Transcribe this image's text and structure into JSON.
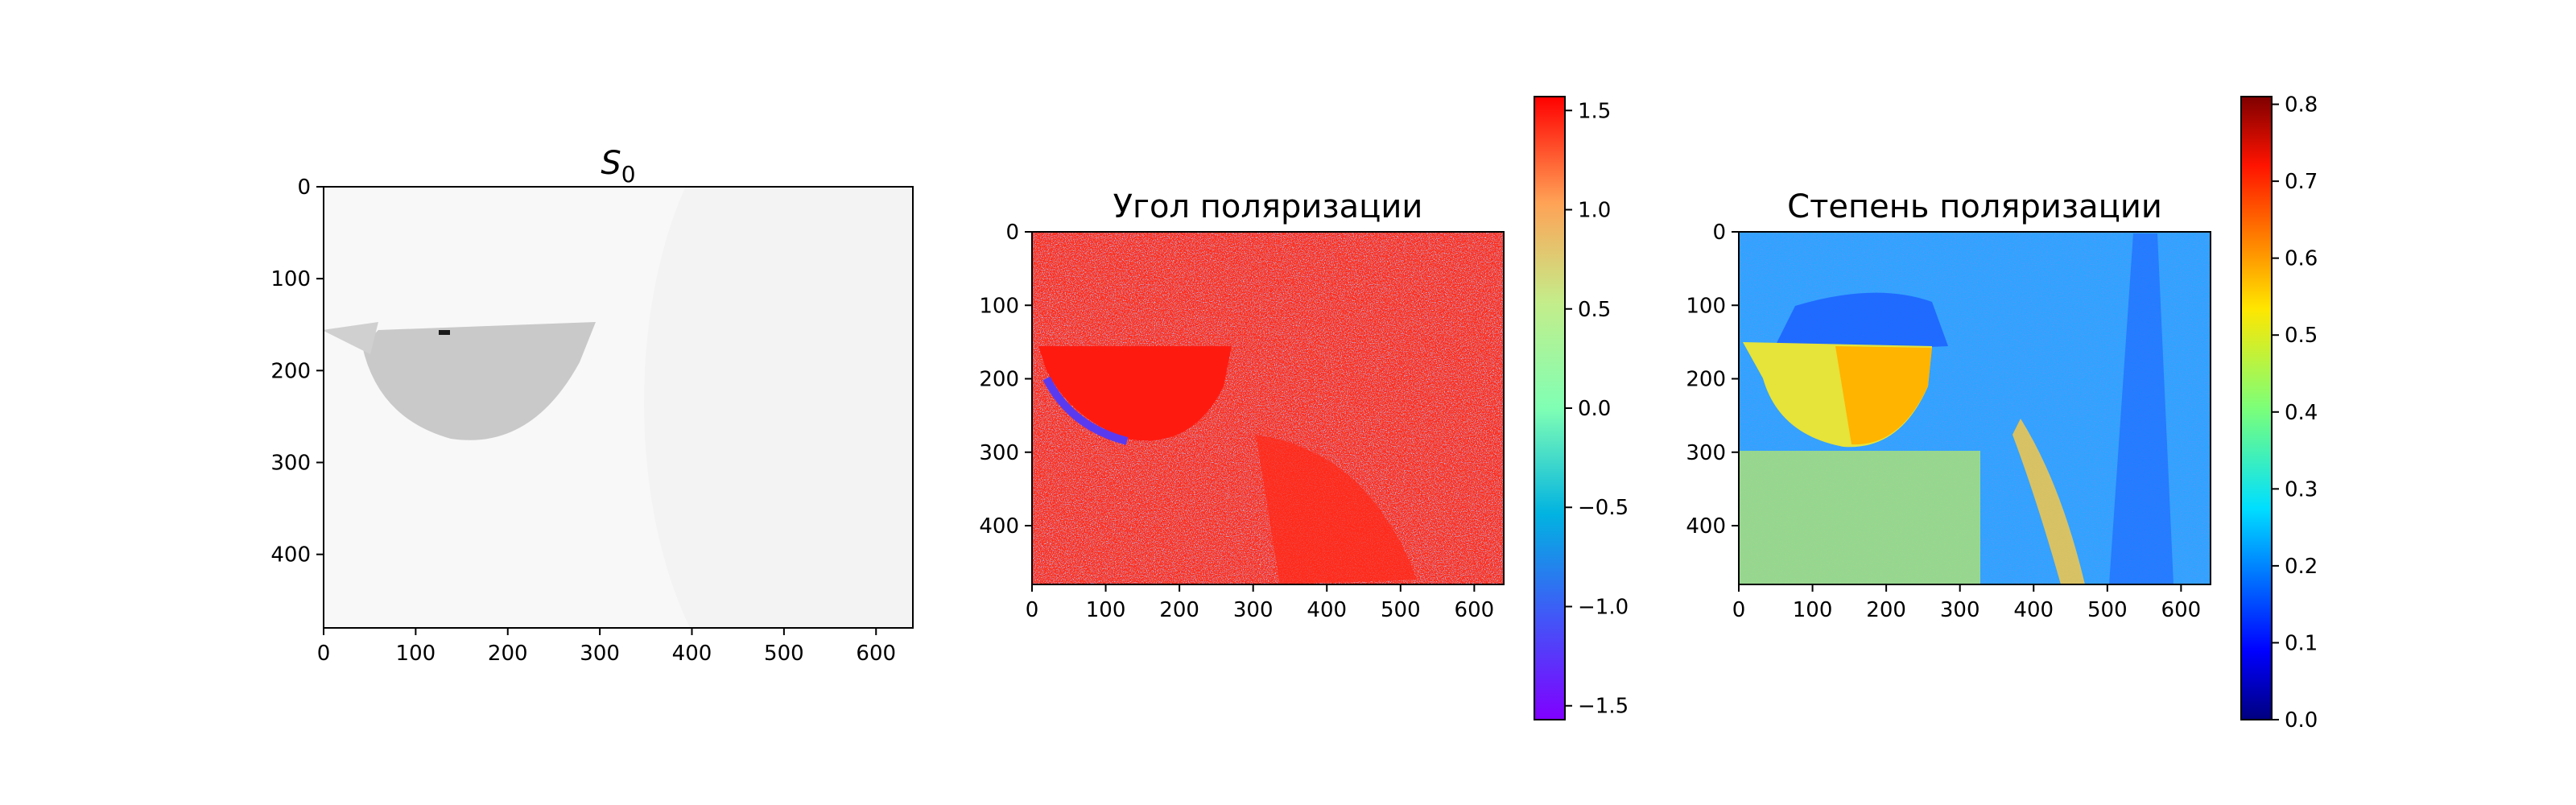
{
  "chart_data": [
    {
      "type": "heatmap",
      "title_base": "S",
      "title_sub": "0",
      "colormap": "gray_r",
      "image_shape": [
        480,
        640
      ],
      "xlim": [
        0,
        640
      ],
      "ylim": [
        480,
        0
      ],
      "x_ticks": [
        0,
        100,
        200,
        300,
        400,
        500,
        600
      ],
      "y_ticks": [
        0,
        100,
        200,
        300,
        400
      ],
      "description_values": "near-white background with a gray cup shape; a dark spot near x=130, y=160"
    },
    {
      "type": "heatmap",
      "title": "Угол поляризации",
      "colormap": "rainbow",
      "image_shape": [
        480,
        640
      ],
      "xlim": [
        0,
        640
      ],
      "ylim": [
        480,
        0
      ],
      "x_ticks": [
        0,
        100,
        200,
        300,
        400,
        500,
        600
      ],
      "y_ticks": [
        0,
        100,
        200,
        300,
        400
      ],
      "colorbar": {
        "range": [
          -1.57,
          1.57
        ],
        "ticks": [
          1.5,
          1.0,
          0.5,
          0.0,
          -0.5,
          -1.0,
          -1.5
        ],
        "tick_labels": [
          "1.5",
          "1.0",
          "0.5",
          "0.0",
          "−0.5",
          "−1.0",
          "−1.5"
        ]
      }
    },
    {
      "type": "heatmap",
      "title": "Степень поляризации",
      "colormap": "jet",
      "image_shape": [
        480,
        640
      ],
      "xlim": [
        0,
        640
      ],
      "ylim": [
        480,
        0
      ],
      "x_ticks": [
        0,
        100,
        200,
        300,
        400,
        500,
        600
      ],
      "y_ticks": [
        0,
        100,
        200,
        300,
        400
      ],
      "colorbar": {
        "range": [
          0.0,
          0.81
        ],
        "ticks": [
          0.8,
          0.7,
          0.6,
          0.5,
          0.4,
          0.3,
          0.2,
          0.1,
          0.0
        ],
        "tick_labels": [
          "0.8",
          "0.7",
          "0.6",
          "0.5",
          "0.4",
          "0.3",
          "0.2",
          "0.1",
          "0.0"
        ]
      }
    }
  ],
  "colors": {
    "axis": "#000000",
    "s0_background": "#f8f8f8",
    "s0_cup": "#c4c4c4",
    "angle_dominant": "#ff2a1a",
    "degree_background": "#2ea4ff"
  }
}
